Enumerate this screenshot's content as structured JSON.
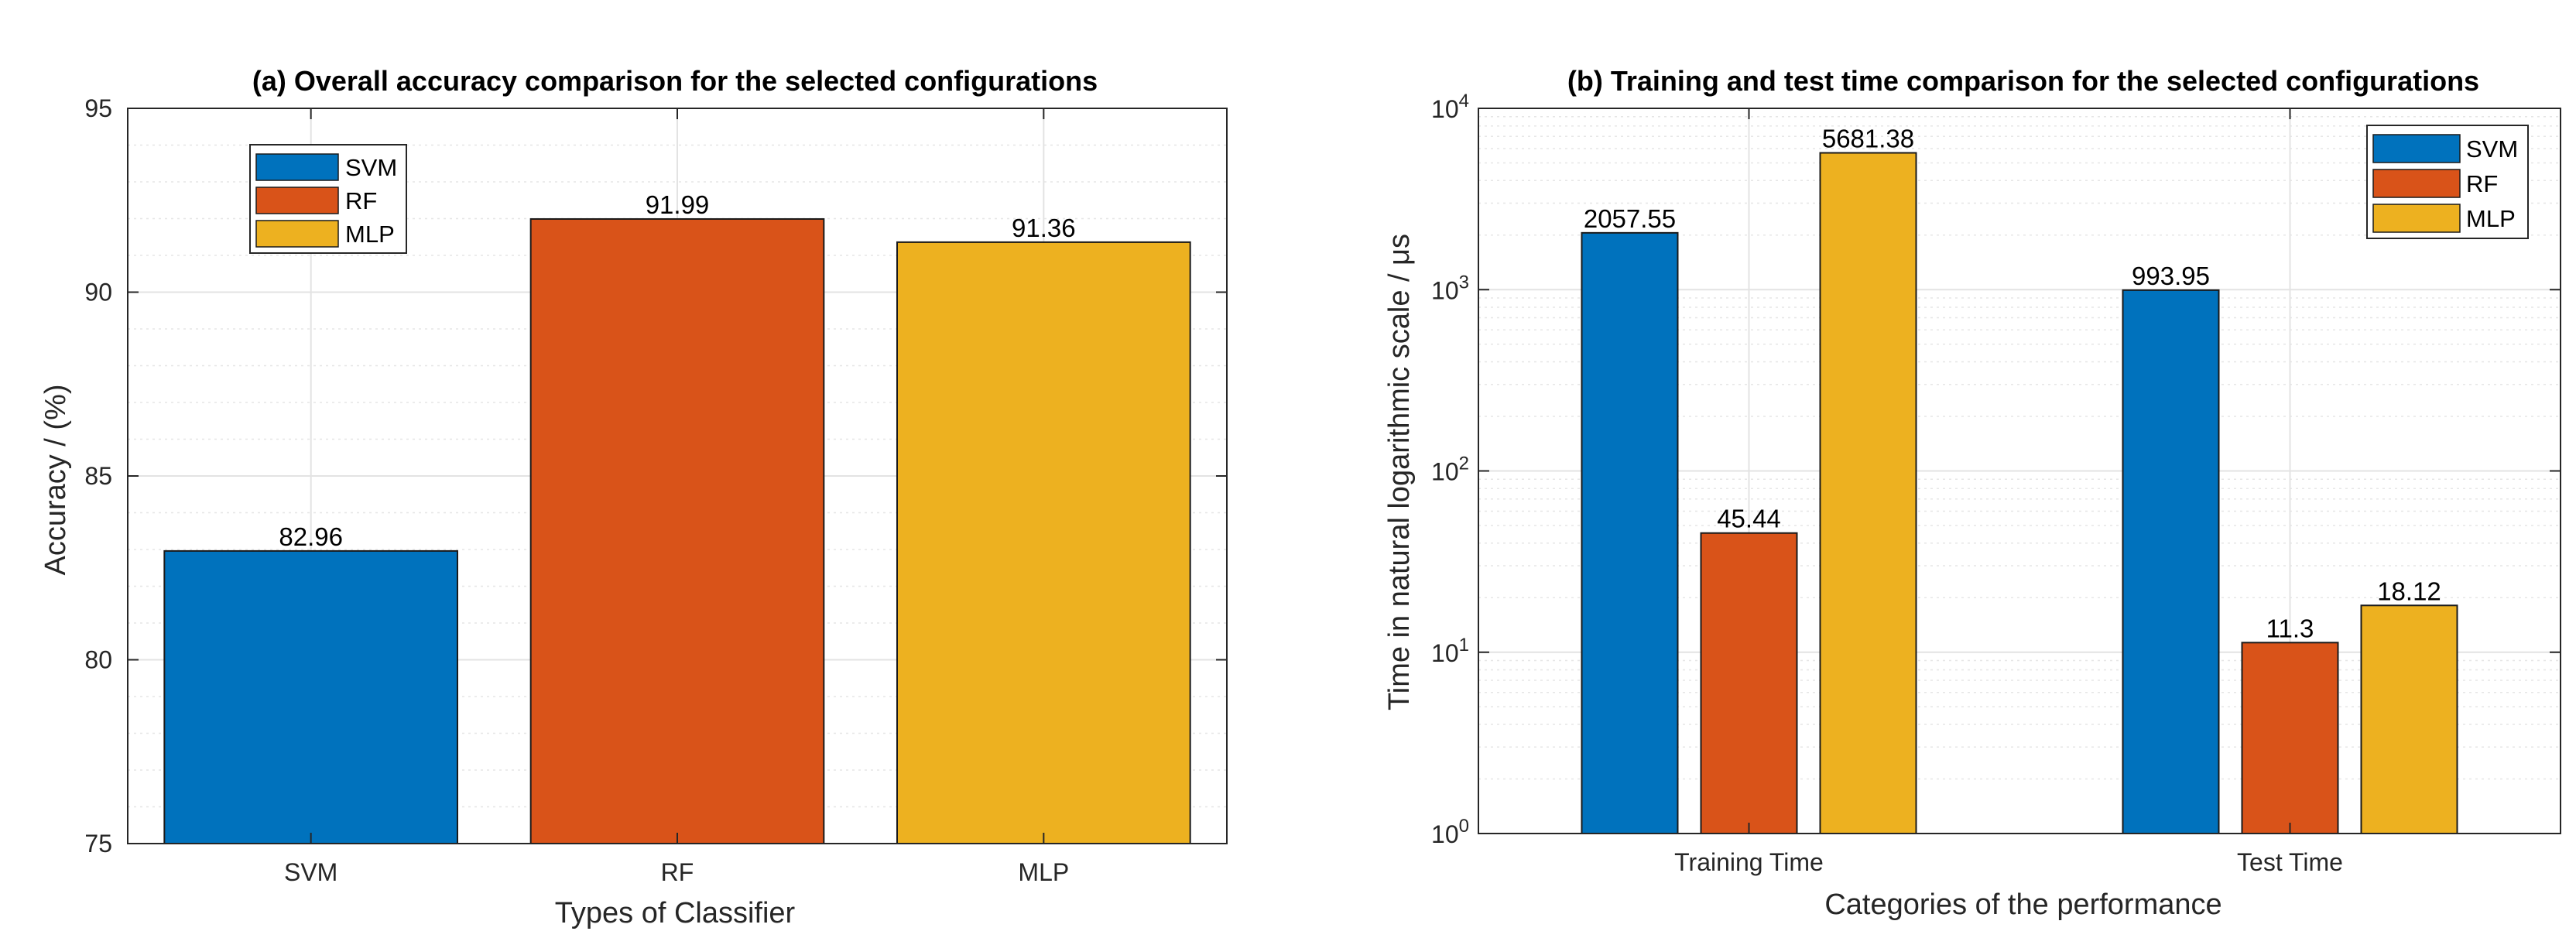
{
  "colors": {
    "svm": "#0072BD",
    "rf": "#D95319",
    "mlp": "#EDB120"
  },
  "chart_data": [
    {
      "type": "bar",
      "title": "(a) Overall accuracy comparison for the selected configurations",
      "xlabel": "Types of Classifier",
      "ylabel": "Accuracy / (%)",
      "categories": [
        "SVM",
        "RF",
        "MLP"
      ],
      "values": [
        82.96,
        91.99,
        91.36
      ],
      "value_labels": [
        "82.96",
        "91.99",
        "91.36"
      ],
      "ylim": [
        75,
        95
      ],
      "yticks": [
        "75",
        "80",
        "85",
        "90",
        "95"
      ],
      "legend": [
        "SVM",
        "RF",
        "MLP"
      ],
      "legend_location": "top-left",
      "grid": true
    },
    {
      "type": "bar",
      "yscale": "log",
      "title": "(b) Training and test time comparison for the selected configurations",
      "xlabel": "Categories of the performance",
      "ylabel": "Time in natural logarithmic scale / μs",
      "categories": [
        "Training Time",
        "Test Time"
      ],
      "series": [
        {
          "name": "SVM",
          "values": [
            2057.55,
            993.95
          ],
          "labels": [
            "2057.55",
            "993.95"
          ]
        },
        {
          "name": "RF",
          "values": [
            45.44,
            11.3
          ],
          "labels": [
            "45.44",
            "11.3"
          ]
        },
        {
          "name": "MLP",
          "values": [
            5681.38,
            18.12
          ],
          "labels": [
            "5681.38",
            "18.12"
          ]
        }
      ],
      "ylim": [
        1,
        10000
      ],
      "yticks": [
        {
          "base": "10",
          "exp": "0"
        },
        {
          "base": "10",
          "exp": "1"
        },
        {
          "base": "10",
          "exp": "2"
        },
        {
          "base": "10",
          "exp": "3"
        },
        {
          "base": "10",
          "exp": "4"
        }
      ],
      "legend": [
        "SVM",
        "RF",
        "MLP"
      ],
      "legend_location": "top-right",
      "grid": true
    }
  ]
}
